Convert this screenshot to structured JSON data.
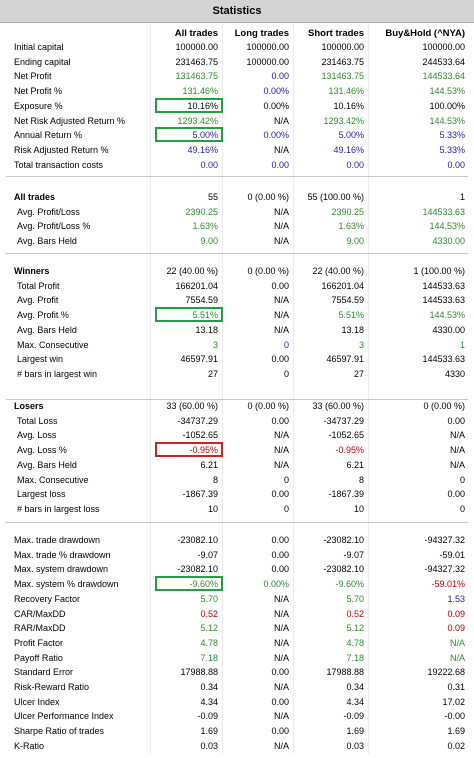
{
  "title": "Statistics",
  "header": [
    "All trades",
    "Long trades",
    "Short trades",
    "Buy&Hold (^NYA)"
  ],
  "sections": [
    {
      "rows": [
        {
          "label": "Initial capital",
          "cells": [
            "100000.00",
            "100000.00",
            "100000.00",
            "100000.00"
          ]
        },
        {
          "label": "Ending capital",
          "cells": [
            "231463.75",
            "100000.00",
            "231463.75",
            "244533.64"
          ]
        },
        {
          "label": "Net Profit",
          "cells": [
            "131463.75",
            "0.00",
            "131463.75",
            "144533.64"
          ],
          "colors": [
            "#2e8b2e",
            "#1f1fa0",
            "#2e8b2e",
            "#2e8b2e"
          ]
        },
        {
          "label": "Net Profit %",
          "cells": [
            "131.46%",
            "0.00%",
            "131.46%",
            "144.53%"
          ],
          "colors": [
            "#2e8b2e",
            "#1f1fa0",
            "#2e8b2e",
            "#2e8b2e"
          ]
        },
        {
          "label": "Exposure %",
          "cells": [
            "10.16%",
            "0.00%",
            "10.16%",
            "100.00%"
          ],
          "box": "#22a046"
        },
        {
          "label": "Net Risk Adjusted Return %",
          "cells": [
            "1293.42%",
            "N/A",
            "1293.42%",
            "144.53%"
          ],
          "colors": [
            "#2e8b2e",
            null,
            "#2e8b2e",
            "#2e8b2e"
          ]
        },
        {
          "label": "Annual Return %",
          "cells": [
            "5.00%",
            "0.00%",
            "5.00%",
            "5.33%"
          ],
          "colors": [
            "#1f1fa0",
            "#1f1fa0",
            "#1f1fa0",
            "#1f1fa0"
          ],
          "box": "#22a046"
        },
        {
          "label": "Risk Adjusted Return %",
          "cells": [
            "49.16%",
            "N/A",
            "49.16%",
            "5.33%"
          ],
          "colors": [
            "#1f1fa0",
            null,
            "#1f1fa0",
            "#1f1fa0"
          ]
        },
        {
          "label": "Total transaction costs",
          "cells": [
            "0.00",
            "0.00",
            "0.00",
            "0.00"
          ],
          "colors": [
            "#1f1fa0",
            "#1f1fa0",
            "#1f1fa0",
            "#1f1fa0"
          ]
        }
      ]
    },
    {
      "rows": [
        {
          "label": "All trades",
          "cells": [
            "55",
            "0 (0.00 %)",
            "55 (100.00 %)",
            "1"
          ]
        },
        {
          "label": "Avg. Profit/Loss",
          "cells": [
            "2390.25",
            "N/A",
            "2390.25",
            "144533.63"
          ],
          "colors": [
            "#2e8b2e",
            null,
            "#2e8b2e",
            "#2e8b2e"
          ]
        },
        {
          "label": "Avg. Profit/Loss %",
          "cells": [
            "1.63%",
            "N/A",
            "1.63%",
            "144.53%"
          ],
          "colors": [
            "#2e8b2e",
            null,
            "#2e8b2e",
            "#2e8b2e"
          ]
        },
        {
          "label": "Avg. Bars Held",
          "cells": [
            "9.00",
            "N/A",
            "9.00",
            "4330.00"
          ],
          "colors": [
            "#2e8b2e",
            null,
            "#2e8b2e",
            "#2e8b2e"
          ]
        }
      ]
    },
    {
      "rows": [
        {
          "label": "Winners",
          "cells": [
            "22 (40.00 %)",
            "0 (0.00 %)",
            "22 (40.00 %)",
            "1 (100.00 %)"
          ]
        },
        {
          "label": "Total Profit",
          "cells": [
            "166201.04",
            "0.00",
            "166201.04",
            "144533.63"
          ]
        },
        {
          "label": "Avg. Profit",
          "cells": [
            "7554.59",
            "N/A",
            "7554.59",
            "144533.63"
          ]
        },
        {
          "label": "Avg. Profit %",
          "cells": [
            "5.51%",
            "N/A",
            "5.51%",
            "144.53%"
          ],
          "colors": [
            "#2e8b2e",
            null,
            "#2e8b2e",
            "#2e8b2e"
          ],
          "box": "#22a046"
        },
        {
          "label": "Avg. Bars Held",
          "cells": [
            "13.18",
            "N/A",
            "13.18",
            "4330.00"
          ]
        },
        {
          "label": "Max. Consecutive",
          "cells": [
            "3",
            "0",
            "3",
            "1"
          ],
          "colors": [
            "#2e8b2e",
            "#1f1fa0",
            "#2e8b2e",
            "#2e8b2e"
          ]
        },
        {
          "label": "Largest win",
          "cells": [
            "46597.91",
            "0.00",
            "46597.91",
            "144533.63"
          ]
        },
        {
          "label": "# bars in largest win",
          "cells": [
            "27",
            "0",
            "27",
            "4330"
          ]
        }
      ]
    },
    {
      "rows": [
        {
          "label": "Losers",
          "cells": [
            "33 (60.00 %)",
            "0 (0.00 %)",
            "33 (60.00 %)",
            "0 (0.00 %)"
          ]
        },
        {
          "label": "Total Loss",
          "cells": [
            "-34737.29",
            "0.00",
            "-34737.29",
            "0.00"
          ]
        },
        {
          "label": "Avg. Loss",
          "cells": [
            "-1052.65",
            "N/A",
            "-1052.65",
            "N/A"
          ]
        },
        {
          "label": "Avg. Loss %",
          "cells": [
            "-0.95%",
            "N/A",
            "-0.95%",
            "N/A"
          ],
          "colors": [
            "#c00000",
            null,
            "#c00000",
            null
          ],
          "box": "#d02020"
        },
        {
          "label": "Avg. Bars Held",
          "cells": [
            "6.21",
            "N/A",
            "6.21",
            "N/A"
          ]
        },
        {
          "label": "Max. Consecutive",
          "cells": [
            "8",
            "0",
            "8",
            "0"
          ]
        },
        {
          "label": "Largest loss",
          "cells": [
            "-1867.39",
            "0.00",
            "-1867.39",
            "0.00"
          ]
        },
        {
          "label": "# bars in largest loss",
          "cells": [
            "10",
            "0",
            "10",
            "0"
          ]
        }
      ]
    },
    {
      "rows": [
        {
          "label": "Max. trade drawdown",
          "cells": [
            "-23082.10",
            "0.00",
            "-23082.10",
            "-94327.32"
          ]
        },
        {
          "label": "Max. trade % drawdown",
          "cells": [
            "-9.07",
            "0.00",
            "-9.07",
            "-59.01"
          ]
        },
        {
          "label": "Max. system drawdown",
          "cells": [
            "-23082.10",
            "0.00",
            "-23082.10",
            "-94327.32"
          ]
        },
        {
          "label": "Max. system % drawdown",
          "cells": [
            "-9.60%",
            "0.00%",
            "-9.60%",
            "-59.01%"
          ],
          "colors": [
            "#2e8b2e",
            "#2e8b2e",
            "#2e8b2e",
            "#c00000"
          ],
          "box": "#22a046"
        },
        {
          "label": "Recovery Factor",
          "cells": [
            "5.70",
            "N/A",
            "5.70",
            "1.53"
          ],
          "colors": [
            "#2e8b2e",
            null,
            "#2e8b2e",
            "#1f1fa0"
          ]
        },
        {
          "label": "CAR/MaxDD",
          "cells": [
            "0.52",
            "N/A",
            "0.52",
            "0.09"
          ],
          "colors": [
            "#c00000",
            null,
            "#c00000",
            "#c00000"
          ]
        },
        {
          "label": "RAR/MaxDD",
          "cells": [
            "5.12",
            "N/A",
            "5.12",
            "0.09"
          ],
          "colors": [
            "#2e8b2e",
            null,
            "#2e8b2e",
            "#c00000"
          ]
        },
        {
          "label": "Profit Factor",
          "cells": [
            "4.78",
            "N/A",
            "4.78",
            "N/A"
          ],
          "colors": [
            "#2e8b2e",
            null,
            "#2e8b2e",
            "#2e8b2e"
          ]
        },
        {
          "label": "Payoff Ratio",
          "cells": [
            "7.18",
            "N/A",
            "7.18",
            "N/A"
          ],
          "colors": [
            "#2e8b2e",
            null,
            "#2e8b2e",
            "#2e8b2e"
          ]
        },
        {
          "label": "Standard Error",
          "cells": [
            "17988.88",
            "0.00",
            "17988.88",
            "19222.68"
          ]
        },
        {
          "label": "Risk-Reward Ratio",
          "cells": [
            "0.34",
            "N/A",
            "0.34",
            "0.31"
          ]
        },
        {
          "label": "Ulcer Index",
          "cells": [
            "4.34",
            "0.00",
            "4.34",
            "17.02"
          ]
        },
        {
          "label": "Ulcer Performance Index",
          "cells": [
            "-0.09",
            "N/A",
            "-0.09",
            "-0.00"
          ]
        },
        {
          "label": "Sharpe Ratio of trades",
          "cells": [
            "1.69",
            "0.00",
            "1.69",
            "1.69"
          ]
        },
        {
          "label": "K-Ratio",
          "cells": [
            "0.03",
            "N/A",
            "0.03",
            "0.02"
          ]
        }
      ]
    }
  ]
}
